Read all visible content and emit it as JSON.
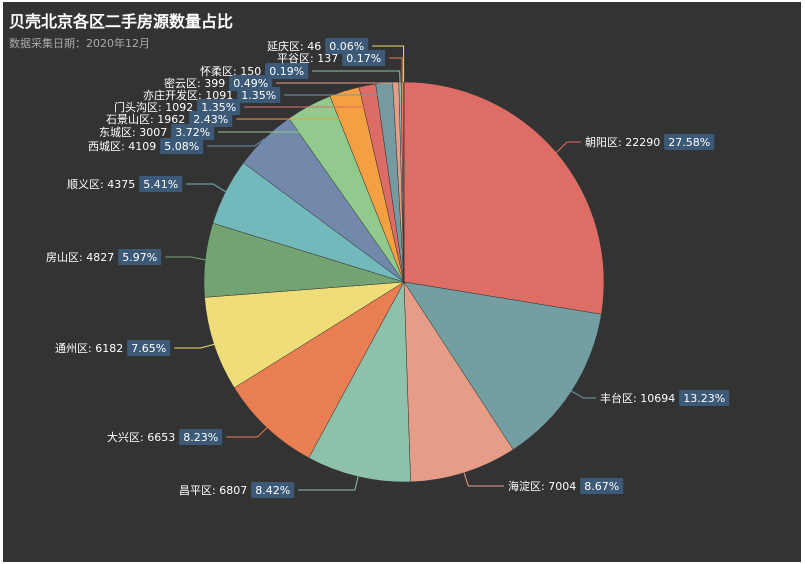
{
  "chart_data": {
    "type": "pie",
    "title": "贝壳北京各区二手房源数量占比",
    "subtitle": "数据采集日期：2020年12月",
    "legend": "none",
    "slices": [
      {
        "name": "朝阳区",
        "value": 22290,
        "percent": "27.58%",
        "color": "#de6e65"
      },
      {
        "name": "丰台区",
        "value": 10694,
        "percent": "13.23%",
        "color": "#739ea2"
      },
      {
        "name": "海淀区",
        "value": 7004,
        "percent": "8.67%",
        "color": "#e69d87"
      },
      {
        "name": "昌平区",
        "value": 6807,
        "percent": "8.42%",
        "color": "#8dc1a9"
      },
      {
        "name": "大兴区",
        "value": 6653,
        "percent": "8.23%",
        "color": "#ea7e53"
      },
      {
        "name": "通州区",
        "value": 6182,
        "percent": "7.65%",
        "color": "#eedd78"
      },
      {
        "name": "房山区",
        "value": 4827,
        "percent": "5.97%",
        "color": "#73a373"
      },
      {
        "name": "顺义区",
        "value": 4375,
        "percent": "5.41%",
        "color": "#73b9bc"
      },
      {
        "name": "西城区",
        "value": 4109,
        "percent": "5.08%",
        "color": "#7289ab"
      },
      {
        "name": "东城区",
        "value": 3007,
        "percent": "3.72%",
        "color": "#91ca8c"
      },
      {
        "name": "石景山区",
        "value": 1962,
        "percent": "2.43%",
        "color": "#f49f42"
      },
      {
        "name": "门头沟区",
        "value": 1092,
        "percent": "1.35%",
        "color": "#dd6b66"
      },
      {
        "name": "亦庄开发区",
        "value": 1091,
        "percent": "1.35%",
        "color": "#759aa0"
      },
      {
        "name": "密云区",
        "value": 399,
        "percent": "0.49%",
        "color": "#e69d87"
      },
      {
        "name": "怀柔区",
        "value": 150,
        "percent": "0.19%",
        "color": "#8dc1a9"
      },
      {
        "name": "平谷区",
        "value": 137,
        "percent": "0.17%",
        "color": "#ea7e53"
      },
      {
        "name": "延庆区",
        "value": 46,
        "percent": "0.06%",
        "color": "#eedd78"
      }
    ]
  }
}
